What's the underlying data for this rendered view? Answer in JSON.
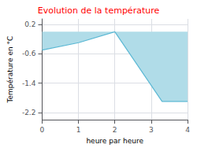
{
  "chart_data": {
    "type": "area",
    "title": "Evolution de la température",
    "xlabel": "heure par heure",
    "ylabel": "Température en °C",
    "x": [
      0,
      1,
      2,
      3.3,
      4
    ],
    "values": [
      -0.5,
      -0.3,
      0.0,
      -1.9,
      -1.9
    ],
    "color": "#5bb8d4",
    "xlim": [
      0,
      4
    ],
    "xticks": [
      0,
      1,
      2,
      3,
      4
    ],
    "ylim": [
      -2.4,
      0.35
    ],
    "yticks": [
      0.2,
      -0.6,
      -1.4,
      -2.2
    ],
    "grid": true
  }
}
